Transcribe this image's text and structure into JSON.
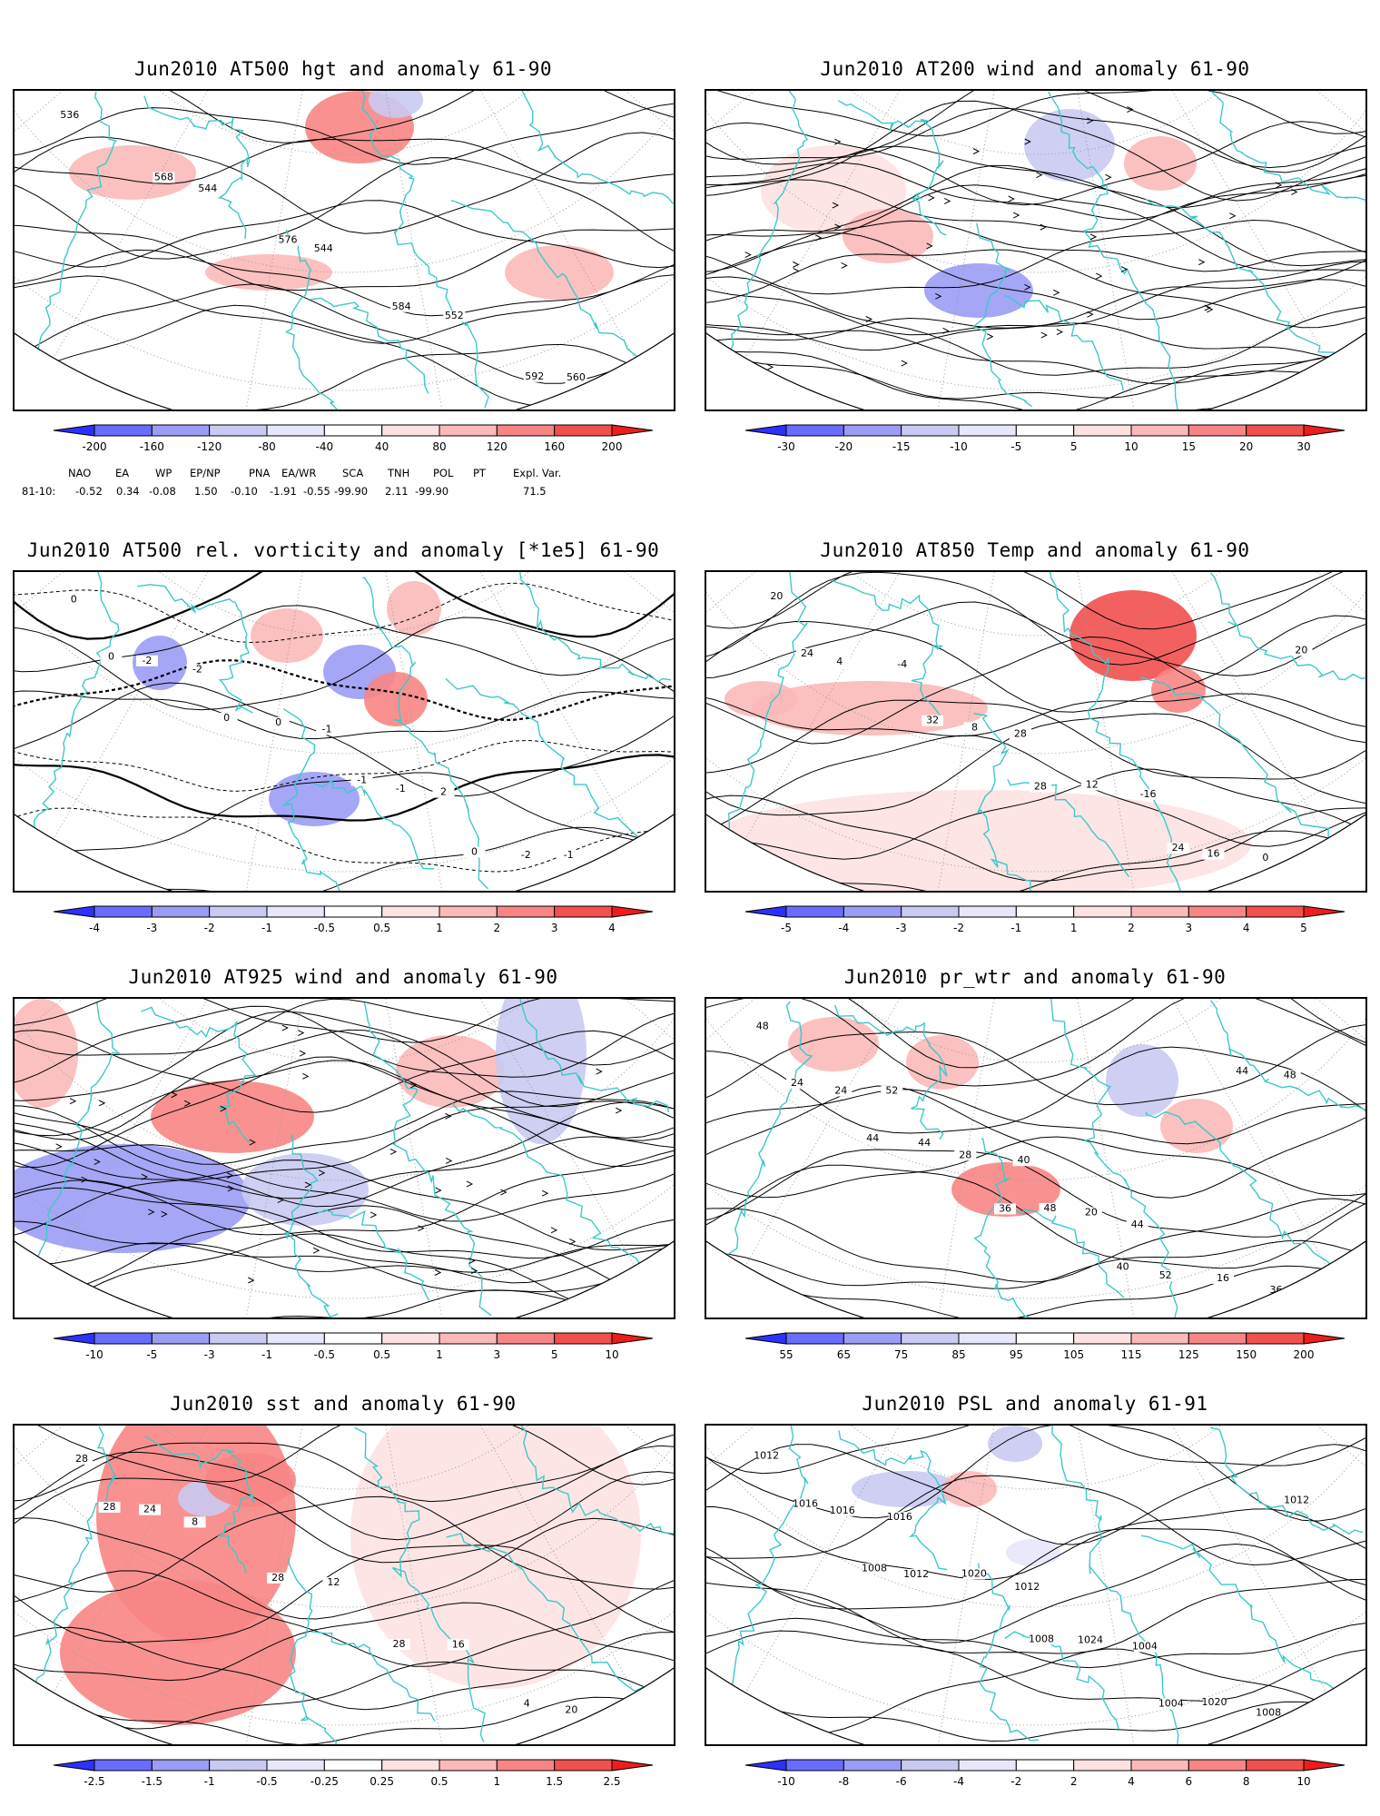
{
  "palette": {
    "blues": [
      "#2e30ff",
      "#6a6cff",
      "#9b9cf5",
      "#c9caf2",
      "#e7e7fb"
    ],
    "reds": [
      "#fde2e2",
      "#fbb9b9",
      "#f88585",
      "#f24f4f",
      "#ee1c1c"
    ],
    "coast": "#3ec8c8",
    "contour": "#000000",
    "grid": "#9a9a9a"
  },
  "panels": [
    {
      "title": "Jun2010 AT500 hgt and anomaly 61-90",
      "ticks": [
        "-200",
        "-160",
        "-120",
        "-80",
        "-40",
        "40",
        "80",
        "120",
        "160",
        "200"
      ],
      "contour_labels": [
        "536",
        "544",
        "544",
        "552",
        "560",
        "568",
        "576",
        "584",
        "592"
      ],
      "indices": {
        "headers": [
          "NAO",
          "EA",
          "WP",
          "EP/NP",
          "PNA",
          "EA/WR",
          "SCA",
          "TNH",
          "POL",
          "PT",
          "Expl. Var."
        ],
        "row_label": "81-10:",
        "values": [
          "-0.52",
          "0.34",
          "-0.08",
          "1.50",
          "-0.10",
          "-1.91",
          "-0.55",
          "-99.90",
          "2.11",
          "-99.90",
          "71.5"
        ]
      }
    },
    {
      "title": "Jun2010 AT200 wind and anomaly 61-90",
      "ticks": [
        "-30",
        "-20",
        "-15",
        "-10",
        "-5",
        "5",
        "10",
        "15",
        "20",
        "30"
      ],
      "contour_labels": []
    },
    {
      "title": "Jun2010 AT500 rel. vorticity and anomaly [*1e5] 61-90",
      "ticks": [
        "-4",
        "-3",
        "-2",
        "-1",
        "-0.5",
        "0.5",
        "1",
        "2",
        "3",
        "4"
      ],
      "contour_labels": [
        "0",
        "-2",
        "-1",
        "2",
        "-1",
        "-2",
        "0",
        "-1",
        "-2",
        "0",
        "0",
        "-1",
        "0"
      ]
    },
    {
      "title": "Jun2010 AT850 Temp and anomaly 61-90",
      "ticks": [
        "-5",
        "-4",
        "-3",
        "-2",
        "-1",
        "1",
        "2",
        "3",
        "4",
        "5"
      ],
      "contour_labels": [
        "20",
        "-4",
        "28",
        "-16",
        "0",
        "4",
        "8",
        "12",
        "16",
        "24",
        "32",
        "28",
        "24",
        "20"
      ]
    },
    {
      "title": "Jun2010 AT925 wind and anomaly 61-90",
      "ticks": [
        "-10",
        "-5",
        "-3",
        "-1",
        "-0.5",
        "0.5",
        "1",
        "3",
        "5",
        "10"
      ],
      "contour_labels": []
    },
    {
      "title": "Jun2010 pr_wtr and anomaly 61-90",
      "ticks": [
        "55",
        "65",
        "75",
        "85",
        "95",
        "105",
        "115",
        "125",
        "150",
        "200"
      ],
      "contour_labels": [
        "48",
        "52",
        "40",
        "44",
        "36",
        "24",
        "28",
        "20",
        "16",
        "24",
        "44",
        "48",
        "52",
        "48",
        "44",
        "36",
        "40",
        "44"
      ]
    },
    {
      "title": "Jun2010 sst and anomaly 61-90",
      "ticks": [
        "-2.5",
        "-1.5",
        "-1",
        "-0.5",
        "-0.25",
        "0.25",
        "0.5",
        "1",
        "1.5",
        "2.5"
      ],
      "contour_labels": [
        "28",
        "8",
        "12",
        "16",
        "20",
        "24",
        "28",
        "28",
        "4",
        "28"
      ]
    },
    {
      "title": "Jun2010 PSL and anomaly 61-91",
      "ticks": [
        "-10",
        "-8",
        "-6",
        "-4",
        "-2",
        "2",
        "4",
        "6",
        "8",
        "10"
      ],
      "contour_labels": [
        "1012",
        "1016",
        "1012",
        "1004",
        "1008",
        "1016",
        "1020",
        "1024",
        "1020",
        "1016",
        "1012",
        "1008",
        "1004",
        "1012",
        "1008"
      ]
    }
  ]
}
